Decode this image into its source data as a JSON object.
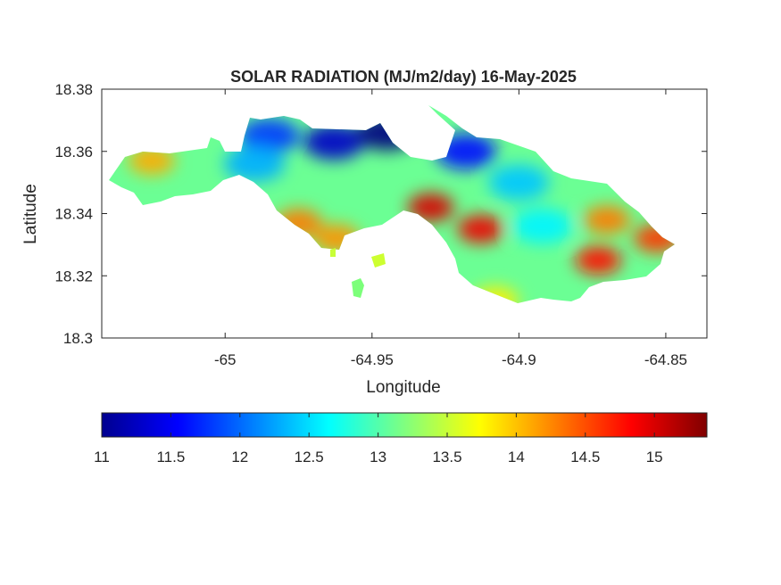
{
  "chart_data": {
    "type": "heatmap",
    "title": "SOLAR RADIATION (MJ/m2/day) 16-May-2025",
    "xlabel": "Longitude",
    "ylabel": "Latitude",
    "xlim": [
      -65.042,
      -64.836
    ],
    "ylim": [
      18.3,
      18.38
    ],
    "x_ticks": [
      -65,
      -64.95,
      -64.9,
      -64.85
    ],
    "x_tick_labels": [
      "-65",
      "-64.95",
      "-64.9",
      "-64.85"
    ],
    "y_ticks": [
      18.3,
      18.32,
      18.34,
      18.36,
      18.38
    ],
    "y_tick_labels": [
      "18.3",
      "18.32",
      "18.34",
      "18.36",
      "18.38"
    ],
    "colormap": "jet",
    "colorbar": {
      "location": "below",
      "range": [
        11,
        15.38
      ],
      "ticks": [
        11,
        11.5,
        12,
        12.5,
        13,
        13.5,
        14,
        14.5,
        15
      ],
      "tick_labels": [
        "11",
        "11.5",
        "12",
        "12.5",
        "13",
        "13.5",
        "14",
        "14.5",
        "15"
      ]
    },
    "hotspots": [
      {
        "lon": -65.025,
        "lat": 18.357,
        "value": 14.1
      },
      {
        "lon": -64.975,
        "lat": 18.337,
        "value": 14.3
      },
      {
        "lon": -64.962,
        "lat": 18.332,
        "value": 14.2
      },
      {
        "lon": -64.93,
        "lat": 18.342,
        "value": 15.0
      },
      {
        "lon": -64.913,
        "lat": 18.335,
        "value": 14.9
      },
      {
        "lon": -64.873,
        "lat": 18.325,
        "value": 14.8
      },
      {
        "lon": -64.87,
        "lat": 18.338,
        "value": 14.3
      },
      {
        "lon": -64.853,
        "lat": 18.332,
        "value": 14.6
      },
      {
        "lon": -64.908,
        "lat": 18.312,
        "value": 13.8
      }
    ],
    "coldspots": [
      {
        "lon": -64.963,
        "lat": 18.363,
        "value": 11.3
      },
      {
        "lon": -64.945,
        "lat": 18.366,
        "value": 11.0
      },
      {
        "lon": -64.985,
        "lat": 18.365,
        "value": 11.8
      },
      {
        "lon": -64.918,
        "lat": 18.36,
        "value": 11.6
      },
      {
        "lon": -64.9,
        "lat": 18.35,
        "value": 12.4
      },
      {
        "lon": -64.892,
        "lat": 18.336,
        "value": 12.6
      },
      {
        "lon": -64.99,
        "lat": 18.356,
        "value": 12.3
      }
    ],
    "background_value": 13.1
  }
}
